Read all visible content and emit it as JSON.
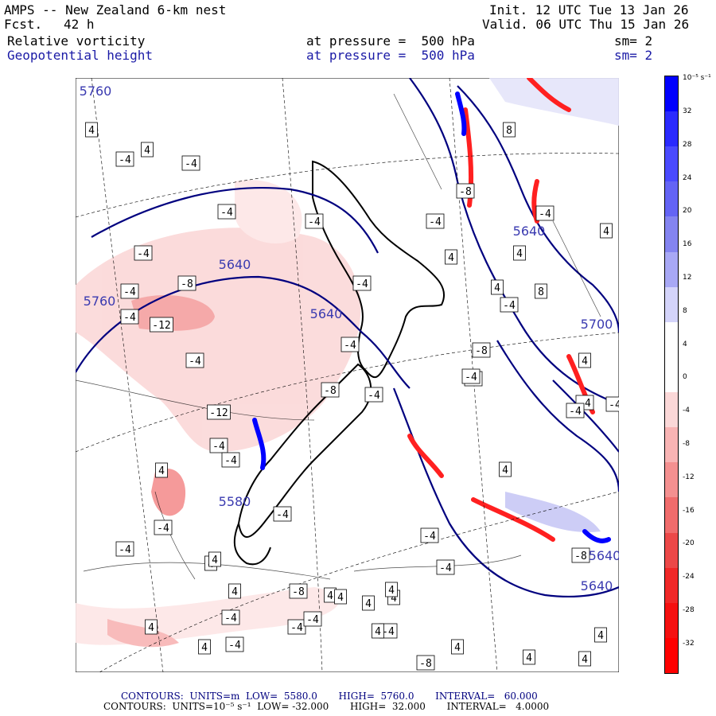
{
  "header": {
    "model": "AMPS -- New Zealand 6-km nest",
    "fcst_label": "Fcst.",
    "fcst_value": "42 h",
    "init": "Init. 12 UTC Tue 13 Jan 26",
    "valid": "Valid. 06 UTC Thu 15 Jan 26",
    "field1": "Relative vorticity",
    "field2": "Geopotential height",
    "level1": "at pressure =  500 hPa",
    "level2": "at pressure =  500 hPa",
    "sm1": "sm= 2",
    "sm2": "sm= 2"
  },
  "colorbar": {
    "units": "10⁻⁵ s⁻¹",
    "ticks": [
      "32",
      "28",
      "24",
      "20",
      "16",
      "12",
      "8",
      "4",
      "0",
      "-4",
      "-8",
      "-12",
      "-16",
      "-20",
      "-24",
      "-28",
      "-32"
    ],
    "colors": [
      "#0000ff",
      "#2a2aff",
      "#4a4aff",
      "#6464f5",
      "#8484f0",
      "#a8a8f5",
      "#d4d4fa",
      "#ffffff",
      "#ffffff",
      "#fbd8d8",
      "#f8b4b4",
      "#f49090",
      "#f06c6c",
      "#ec4848",
      "#f02828",
      "#f51010",
      "#ff0000"
    ]
  },
  "height_labels": [
    "5760",
    "5640",
    "5640",
    "5640",
    "5640",
    "5760",
    "5700",
    "5580",
    "5640"
  ],
  "vort_labels": [
    "4",
    "-4",
    "4",
    "-4",
    "-4",
    "-4",
    "-4",
    "-8",
    "-12",
    "-4",
    "-4",
    "-4",
    "-4",
    "-8",
    "-4",
    "-12",
    "-8",
    "-4",
    "8",
    "4",
    "-4",
    "-4",
    "-8",
    "-4",
    "4",
    "8",
    "-8",
    "-4",
    "4",
    "4",
    "4",
    "-4",
    "-4",
    "-4",
    "-8",
    "-4",
    "4",
    "-4",
    "4",
    "-8",
    "-4",
    "4",
    "4",
    "4",
    "-4",
    "-4",
    "4",
    "-4",
    "-4",
    "4",
    "4",
    "-4",
    "-4",
    "-4",
    "4",
    "4",
    "4",
    "-4",
    "-8",
    "-4",
    "4",
    "4",
    "4",
    "4",
    "4",
    "4"
  ],
  "footer": {
    "line1": "CONTOURS:  UNITS=m  LOW=  5580.0       HIGH=  5760.0       INTERVAL=   60.000",
    "line2": "CONTOURS:  UNITS=10⁻⁵ s⁻¹  LOW= -32.000       HIGH=  32.000       INTERVAL=   4.0000"
  }
}
